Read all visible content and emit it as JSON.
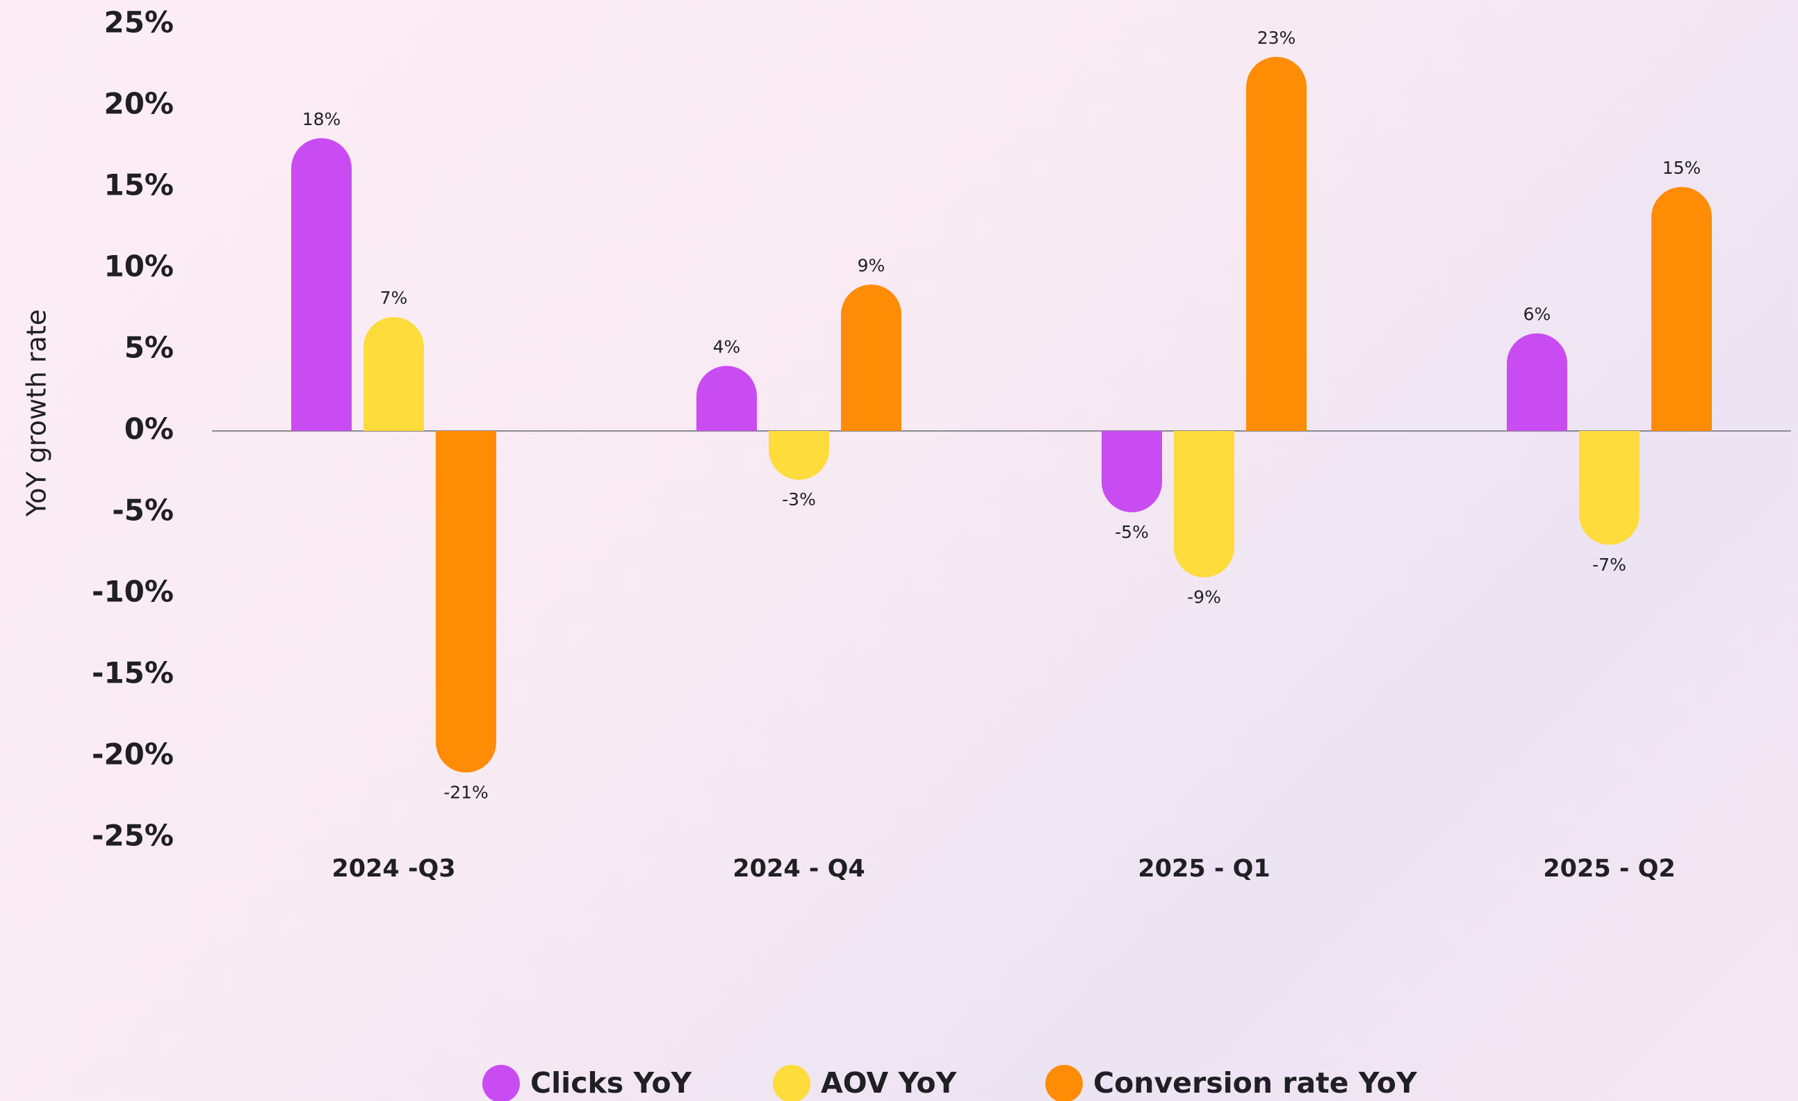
{
  "chart_data": {
    "type": "bar",
    "y_label": "YoY growth rate",
    "categories": [
      "2024 -Q3",
      "2024 - Q4",
      "2025 - Q1",
      "2025 - Q2"
    ],
    "series": [
      {
        "name": "Clicks YoY",
        "color": "#c84cf2",
        "values": [
          18,
          4,
          -5,
          6
        ],
        "value_labels": [
          "18%",
          "4%",
          "-5%",
          "6%"
        ]
      },
      {
        "name": "AOV YoY",
        "color": "#fddc3c",
        "values": [
          7,
          -3,
          -9,
          -7
        ],
        "value_labels": [
          "7%",
          "-3%",
          "-9%",
          "-7%"
        ]
      },
      {
        "name": "Conversion rate YoY",
        "color": "#ff8c05",
        "values": [
          -21,
          9,
          23,
          15
        ],
        "value_labels": [
          "-21%",
          "9%",
          "23%",
          "15%"
        ]
      }
    ],
    "ylim": [
      -25,
      25
    ],
    "yticks": [
      {
        "value": -25,
        "label": "-25%"
      },
      {
        "value": -20,
        "label": "-20%"
      },
      {
        "value": -15,
        "label": "-15%"
      },
      {
        "value": -10,
        "label": "-10%"
      },
      {
        "value": -5,
        "label": "-5%"
      },
      {
        "value": 0,
        "label": "0%"
      },
      {
        "value": 5,
        "label": "5%"
      },
      {
        "value": 10,
        "label": "10%"
      },
      {
        "value": 15,
        "label": "15%"
      },
      {
        "value": 20,
        "label": "20%"
      },
      {
        "value": 25,
        "label": "25%"
      }
    ],
    "grid": false,
    "legend": "bottom"
  }
}
